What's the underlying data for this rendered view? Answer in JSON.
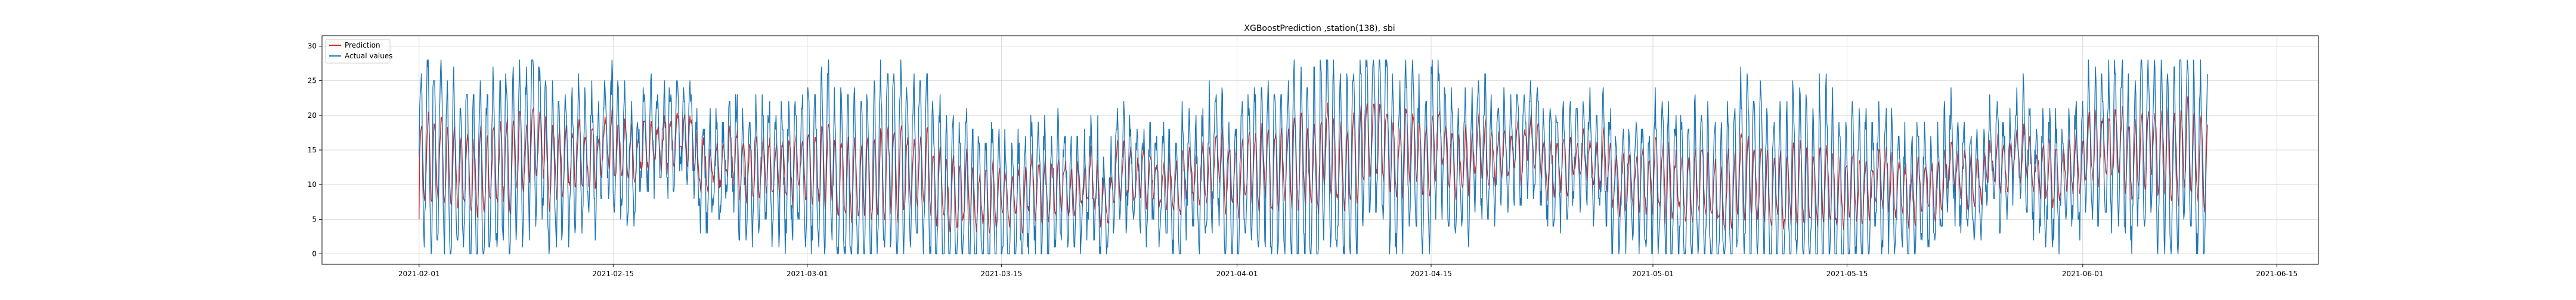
{
  "chart_data": {
    "type": "line",
    "title": "XGBoostPrediction ,station(138), sbi",
    "xlabel": "",
    "ylabel": "",
    "x_start": "2021-02-01",
    "x_end": "2021-06-10",
    "xlim": [
      "2021-01-25",
      "2021-06-18"
    ],
    "ylim": [
      -1.5,
      31.5
    ],
    "x_ticks": [
      "2021-02-01",
      "2021-02-15",
      "2021-03-01",
      "2021-03-15",
      "2021-04-01",
      "2021-04-15",
      "2021-05-01",
      "2021-05-15",
      "2021-06-01",
      "2021-06-15"
    ],
    "y_ticks": [
      0,
      5,
      10,
      15,
      20,
      25,
      30
    ],
    "grid": true,
    "legend": {
      "position": "top-left"
    },
    "series": [
      {
        "name": "Prediction",
        "color": "#d62728",
        "frequency": "hourly",
        "style": "smoothed daily pattern, mostly 5-20"
      },
      {
        "name": "Actual values",
        "color": "#1f77b4",
        "frequency": "hourly",
        "style": "daily oscillation between 0 and ~28"
      }
    ]
  }
}
